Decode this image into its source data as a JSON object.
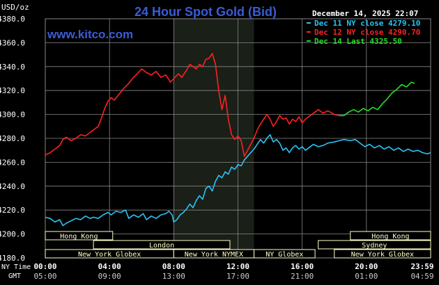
{
  "header": {
    "title": "24 Hour Spot Gold (Bid)",
    "unit": "USD/oz",
    "timestamp": "December 14, 2025 22:07",
    "site": "www.kitco.com"
  },
  "legend": [
    {
      "label": "Dec 11 NY close 4279.10",
      "color": "#29c5f6"
    },
    {
      "label": "Dec 12 NY close 4290.70",
      "color": "#ff2020"
    },
    {
      "label": "Dec 14 Last 4325.50",
      "color": "#22e022"
    }
  ],
  "colors": {
    "background": "#000000",
    "grid": "#888888",
    "title": "#3b5bd6",
    "site": "#3b5bd6",
    "highlight": "#1a1f18",
    "sessionBar": "#ffffcc",
    "sessionText": "#222222",
    "axisText": "#ffffff"
  },
  "axis_labels": {
    "ny_time": "NY Time",
    "gmt": "GMT"
  },
  "sessions": {
    "row1": [
      {
        "name": "Hong Kong",
        "start_hour": 0.0,
        "end_hour": 4.2
      },
      {
        "name": "Hong Kong",
        "start_hour": 19.0,
        "end_hour": 24.0
      }
    ],
    "row2": [
      {
        "name": "London",
        "start_hour": 3.0,
        "end_hour": 11.5
      },
      {
        "name": "Sydney",
        "start_hour": 17.0,
        "end_hour": 24.0
      }
    ],
    "row3": [
      {
        "name": "New York Globex",
        "start_hour": 0.0,
        "end_hour": 8.0
      },
      {
        "name": "New York NYMEX",
        "start_hour": 8.0,
        "end_hour": 13.0
      },
      {
        "name": "NY Globex",
        "start_hour": 13.0,
        "end_hour": 16.8
      },
      {
        "name": "New York Globex",
        "start_hour": 18.0,
        "end_hour": 24.0
      }
    ]
  },
  "chart_data": {
    "type": "line",
    "title": "24 Hour Spot Gold (Bid)",
    "ylabel": "USD/oz",
    "ylim": [
      4180,
      4380
    ],
    "yticks": [
      "4180.0",
      "4200.0",
      "4220.0",
      "4240.0",
      "4260.0",
      "4280.0",
      "4300.0",
      "4320.0",
      "4340.0",
      "4360.0",
      "4380.0"
    ],
    "yticks_values": [
      4180,
      4200,
      4220,
      4240,
      4260,
      4280,
      4300,
      4320,
      4340,
      4360,
      4380
    ],
    "xlim": [
      0,
      24
    ],
    "xticks_values": [
      0,
      4,
      8,
      12,
      16,
      20,
      24
    ],
    "xticks_ny": [
      "00:00",
      "04:00",
      "08:00",
      "12:00",
      "16:00",
      "20:00",
      "23:59"
    ],
    "xticks_gmt": [
      "05:00",
      "09:00",
      "13:00",
      "17:00",
      "21:00",
      "01:00",
      "04:59"
    ],
    "highlight_range_hours": [
      8,
      13
    ],
    "grid": true,
    "legend_position": "top-right",
    "series": [
      {
        "name": "Dec 11 NY close 4279.10",
        "color": "#29c5f6",
        "points": [
          [
            0,
            4214
          ],
          [
            0.3,
            4213
          ],
          [
            0.6,
            4210
          ],
          [
            0.9,
            4212
          ],
          [
            1.1,
            4207
          ],
          [
            1.3,
            4209
          ],
          [
            1.6,
            4211
          ],
          [
            1.9,
            4213
          ],
          [
            2.2,
            4212
          ],
          [
            2.5,
            4215
          ],
          [
            2.8,
            4213
          ],
          [
            3.0,
            4214
          ],
          [
            3.3,
            4213
          ],
          [
            3.6,
            4216
          ],
          [
            3.9,
            4218
          ],
          [
            4.1,
            4216
          ],
          [
            4.4,
            4219
          ],
          [
            4.7,
            4218
          ],
          [
            5.0,
            4220
          ],
          [
            5.2,
            4213
          ],
          [
            5.5,
            4216
          ],
          [
            5.8,
            4214
          ],
          [
            6.1,
            4217
          ],
          [
            6.3,
            4212
          ],
          [
            6.6,
            4215
          ],
          [
            6.9,
            4213
          ],
          [
            7.2,
            4216
          ],
          [
            7.5,
            4217
          ],
          [
            7.7,
            4219
          ],
          [
            7.9,
            4216
          ],
          [
            8.0,
            4210
          ],
          [
            8.2,
            4212
          ],
          [
            8.4,
            4216
          ],
          [
            8.6,
            4218
          ],
          [
            8.8,
            4221
          ],
          [
            9.0,
            4225
          ],
          [
            9.2,
            4222
          ],
          [
            9.4,
            4228
          ],
          [
            9.6,
            4232
          ],
          [
            9.8,
            4229
          ],
          [
            10.0,
            4238
          ],
          [
            10.2,
            4240
          ],
          [
            10.4,
            4236
          ],
          [
            10.6,
            4244
          ],
          [
            10.8,
            4249
          ],
          [
            11.0,
            4247
          ],
          [
            11.2,
            4252
          ],
          [
            11.4,
            4250
          ],
          [
            11.6,
            4256
          ],
          [
            11.8,
            4254
          ],
          [
            12.0,
            4258
          ],
          [
            12.2,
            4257
          ],
          [
            12.4,
            4262
          ],
          [
            12.6,
            4265
          ],
          [
            12.8,
            4268
          ],
          [
            13.0,
            4271
          ],
          [
            13.2,
            4275
          ],
          [
            13.4,
            4279
          ],
          [
            13.6,
            4276
          ],
          [
            13.8,
            4280
          ],
          [
            14.0,
            4283
          ],
          [
            14.2,
            4277
          ],
          [
            14.4,
            4279
          ],
          [
            14.6,
            4276
          ],
          [
            14.8,
            4270
          ],
          [
            15.0,
            4272
          ],
          [
            15.2,
            4268
          ],
          [
            15.4,
            4272
          ],
          [
            15.6,
            4274
          ],
          [
            15.8,
            4271
          ],
          [
            16.0,
            4273
          ],
          [
            16.2,
            4270
          ],
          [
            16.4,
            4272
          ],
          [
            16.7,
            4275
          ],
          [
            17.0,
            4273
          ],
          [
            17.3,
            4274
          ],
          [
            17.6,
            4276
          ],
          [
            18.0,
            4277
          ],
          [
            18.3,
            4278
          ],
          [
            18.6,
            4279
          ],
          [
            19.0,
            4278
          ],
          [
            19.3,
            4279
          ],
          [
            19.6,
            4276
          ],
          [
            19.9,
            4273
          ],
          [
            20.2,
            4275
          ],
          [
            20.5,
            4272
          ],
          [
            20.8,
            4274
          ],
          [
            21.1,
            4271
          ],
          [
            21.4,
            4273
          ],
          [
            21.7,
            4270
          ],
          [
            22.0,
            4272
          ],
          [
            22.3,
            4269
          ],
          [
            22.6,
            4271
          ],
          [
            22.9,
            4269
          ],
          [
            23.2,
            4270
          ],
          [
            23.5,
            4268
          ],
          [
            23.8,
            4267
          ],
          [
            24.0,
            4268
          ]
        ]
      },
      {
        "name": "Dec 12 NY close 4290.70",
        "color": "#ff2020",
        "points": [
          [
            0,
            4266
          ],
          [
            0.3,
            4268
          ],
          [
            0.6,
            4271
          ],
          [
            0.9,
            4274
          ],
          [
            1.1,
            4279
          ],
          [
            1.3,
            4281
          ],
          [
            1.6,
            4278
          ],
          [
            1.9,
            4280
          ],
          [
            2.2,
            4283
          ],
          [
            2.5,
            4282
          ],
          [
            2.8,
            4285
          ],
          [
            3.0,
            4287
          ],
          [
            3.3,
            4290
          ],
          [
            3.5,
            4297
          ],
          [
            3.7,
            4305
          ],
          [
            3.9,
            4311
          ],
          [
            4.1,
            4314
          ],
          [
            4.3,
            4312
          ],
          [
            4.6,
            4317
          ],
          [
            4.9,
            4322
          ],
          [
            5.2,
            4326
          ],
          [
            5.5,
            4331
          ],
          [
            5.8,
            4335
          ],
          [
            6.0,
            4338
          ],
          [
            6.3,
            4335
          ],
          [
            6.6,
            4333
          ],
          [
            6.9,
            4336
          ],
          [
            7.2,
            4331
          ],
          [
            7.5,
            4333
          ],
          [
            7.8,
            4327
          ],
          [
            8.0,
            4330
          ],
          [
            8.3,
            4334
          ],
          [
            8.5,
            4331
          ],
          [
            8.8,
            4337
          ],
          [
            9.0,
            4342
          ],
          [
            9.2,
            4340
          ],
          [
            9.4,
            4338
          ],
          [
            9.6,
            4342
          ],
          [
            9.8,
            4340
          ],
          [
            10.0,
            4346
          ],
          [
            10.2,
            4347
          ],
          [
            10.4,
            4351
          ],
          [
            10.6,
            4342
          ],
          [
            10.8,
            4320
          ],
          [
            11.0,
            4304
          ],
          [
            11.2,
            4316
          ],
          [
            11.4,
            4296
          ],
          [
            11.6,
            4283
          ],
          [
            11.8,
            4279
          ],
          [
            12.0,
            4282
          ],
          [
            12.2,
            4278
          ],
          [
            12.4,
            4265
          ],
          [
            12.6,
            4270
          ],
          [
            12.8,
            4275
          ],
          [
            13.0,
            4280
          ],
          [
            13.2,
            4287
          ],
          [
            13.4,
            4292
          ],
          [
            13.6,
            4296
          ],
          [
            13.8,
            4300
          ],
          [
            14.0,
            4296
          ],
          [
            14.2,
            4290
          ],
          [
            14.4,
            4294
          ],
          [
            14.6,
            4299
          ],
          [
            14.8,
            4296
          ],
          [
            15.0,
            4297
          ],
          [
            15.2,
            4292
          ],
          [
            15.4,
            4296
          ],
          [
            15.6,
            4294
          ],
          [
            15.8,
            4298
          ],
          [
            16.0,
            4293
          ],
          [
            16.2,
            4296
          ],
          [
            16.5,
            4299
          ],
          [
            16.8,
            4302
          ],
          [
            17.0,
            4304
          ],
          [
            17.3,
            4301
          ],
          [
            17.6,
            4303
          ],
          [
            18.0,
            4300
          ],
          [
            18.3,
            4299
          ]
        ]
      },
      {
        "name": "Dec 14 Last 4325.50",
        "color": "#22e022",
        "points": [
          [
            18.3,
            4299
          ],
          [
            18.6,
            4299
          ],
          [
            18.9,
            4302
          ],
          [
            19.2,
            4304
          ],
          [
            19.5,
            4302
          ],
          [
            19.8,
            4305
          ],
          [
            20.1,
            4303
          ],
          [
            20.4,
            4306
          ],
          [
            20.7,
            4304
          ],
          [
            21.0,
            4309
          ],
          [
            21.3,
            4313
          ],
          [
            21.6,
            4318
          ],
          [
            21.9,
            4321
          ],
          [
            22.2,
            4325
          ],
          [
            22.5,
            4323
          ],
          [
            22.8,
            4327
          ],
          [
            23.0,
            4326
          ]
        ]
      }
    ]
  }
}
